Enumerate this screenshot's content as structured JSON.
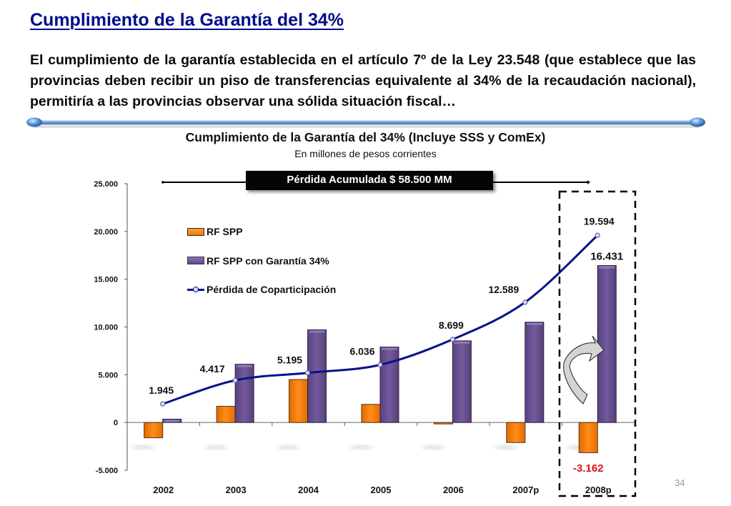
{
  "slide": {
    "title": "Cumplimiento de la Garantía del 34%",
    "intro": "El cumplimiento de la garantía establecida en el artículo 7º de la Ley 23.548 (que establece que las provincias deben recibir un piso de transferencias equivalente al 34% de la recaudación nacional), permitiría a las provincias observar una sólida situación fiscal…",
    "page_number": "34"
  },
  "colors": {
    "title": "#000c8c",
    "rf_spp": "#f37f0e",
    "rf_spp_garantia": "#6a5191",
    "loss_line": "#0a128a",
    "negative_label": "#e01010"
  },
  "annotation": {
    "loss_box": "Pérdida Acumulada  $ 58.500 MM",
    "highlight_year": "2008p"
  },
  "chart_data": {
    "type": "bar",
    "title": "Cumplimiento de la Garantía del 34% (Incluye SSS y ComEx)",
    "subtitle": "En millones de pesos corrientes",
    "xlabel": "",
    "ylabel": "",
    "categories": [
      "2002",
      "2003",
      "2004",
      "2005",
      "2006",
      "2007p",
      "2008p"
    ],
    "ylim": [
      -5000,
      25000
    ],
    "yticks": [
      -5000,
      0,
      5000,
      10000,
      15000,
      20000,
      25000
    ],
    "ytick_labels": [
      "-5.000",
      "0",
      "5.000",
      "10.000",
      "15.000",
      "20.000",
      "25.000"
    ],
    "grid": false,
    "legend_position": "top-left",
    "series": [
      {
        "name": "RF SPP",
        "kind": "bar",
        "values": [
          -1600,
          1700,
          4500,
          1900,
          -150,
          -2100,
          -3162
        ]
      },
      {
        "name": "RF SPP con Garantía 34%",
        "kind": "bar",
        "values": [
          350,
          6100,
          9700,
          7900,
          8550,
          10500,
          16431
        ]
      },
      {
        "name": "Pérdida de Coparticipación",
        "kind": "line",
        "values": [
          1945,
          4417,
          5195,
          6036,
          8699,
          12589,
          19594
        ]
      }
    ],
    "data_labels": {
      "line": [
        "1.945",
        "4.417",
        "5.195",
        "6.036",
        "8.699",
        "12.589",
        "19.594"
      ],
      "bar_2008p_garantia": "16.431",
      "bar_2008p_rf_spp": "-3.162"
    }
  }
}
